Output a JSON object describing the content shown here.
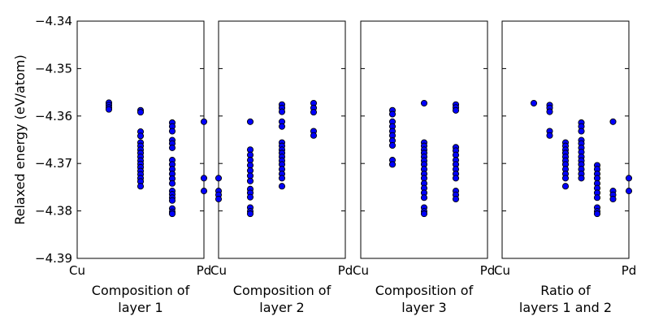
{
  "chart_data": {
    "type": "scatter",
    "ylabel": "Relaxed energy (eV/atom)",
    "ylim": [
      -4.39,
      -4.34
    ],
    "yticks": [
      "−4.34",
      "−4.35",
      "−4.36",
      "−4.37",
      "−4.38",
      "−4.39"
    ],
    "ytick_values": [
      -4.34,
      -4.35,
      -4.36,
      -4.37,
      -4.38,
      -4.39
    ],
    "xlim": [
      0,
      1
    ],
    "marker_color": "#0000ff",
    "edge_color": "#000000",
    "subplots": [
      {
        "xlabel_lines": [
          "Composition of",
          "layer 1"
        ],
        "xtick_left": "Cu",
        "xtick_right": "Pd",
        "points": [
          [
            0.25,
            -4.3572
          ],
          [
            0.25,
            -4.3577
          ],
          [
            0.25,
            -4.3582
          ],
          [
            0.25,
            -4.3586
          ],
          [
            0.5,
            -4.3588
          ],
          [
            0.5,
            -4.3592
          ],
          [
            0.5,
            -4.3633
          ],
          [
            0.5,
            -4.3642
          ],
          [
            0.5,
            -4.3656
          ],
          [
            0.5,
            -4.3663
          ],
          [
            0.5,
            -4.3671
          ],
          [
            0.5,
            -4.3678
          ],
          [
            0.5,
            -4.3686
          ],
          [
            0.5,
            -4.3694
          ],
          [
            0.5,
            -4.3701
          ],
          [
            0.5,
            -4.3708
          ],
          [
            0.5,
            -4.3716
          ],
          [
            0.5,
            -4.3723
          ],
          [
            0.5,
            -4.3731
          ],
          [
            0.5,
            -4.3738
          ],
          [
            0.5,
            -4.3748
          ],
          [
            0.75,
            -4.3614
          ],
          [
            0.75,
            -4.3622
          ],
          [
            0.75,
            -4.3632
          ],
          [
            0.75,
            -4.3651
          ],
          [
            0.75,
            -4.3658
          ],
          [
            0.75,
            -4.3667
          ],
          [
            0.75,
            -4.3693
          ],
          [
            0.75,
            -4.3702
          ],
          [
            0.75,
            -4.3712
          ],
          [
            0.75,
            -4.3722
          ],
          [
            0.75,
            -4.3732
          ],
          [
            0.75,
            -4.3742
          ],
          [
            0.75,
            -4.3758
          ],
          [
            0.75,
            -4.3765
          ],
          [
            0.75,
            -4.3772
          ],
          [
            0.75,
            -4.3778
          ],
          [
            0.75,
            -4.3795
          ],
          [
            0.75,
            -4.3802
          ],
          [
            0.75,
            -4.3806
          ],
          [
            1.0,
            -4.3612
          ],
          [
            1.0,
            -4.3731
          ],
          [
            1.0,
            -4.3758
          ]
        ]
      },
      {
        "xlabel_lines": [
          "Composition of",
          "layer 2"
        ],
        "xtick_left": "Cu",
        "xtick_right": "Pd",
        "points": [
          [
            0.0,
            -4.3731
          ],
          [
            0.0,
            -4.3758
          ],
          [
            0.0,
            -4.3766
          ],
          [
            0.0,
            -4.3775
          ],
          [
            0.25,
            -4.3612
          ],
          [
            0.25,
            -4.3671
          ],
          [
            0.25,
            -4.3682
          ],
          [
            0.25,
            -4.3693
          ],
          [
            0.25,
            -4.3704
          ],
          [
            0.25,
            -4.3715
          ],
          [
            0.25,
            -4.3726
          ],
          [
            0.25,
            -4.3737
          ],
          [
            0.25,
            -4.3754
          ],
          [
            0.25,
            -4.3762
          ],
          [
            0.25,
            -4.3771
          ],
          [
            0.25,
            -4.3793
          ],
          [
            0.25,
            -4.3801
          ],
          [
            0.25,
            -4.3806
          ],
          [
            0.5,
            -4.3576
          ],
          [
            0.5,
            -4.3583
          ],
          [
            0.5,
            -4.3591
          ],
          [
            0.5,
            -4.3612
          ],
          [
            0.5,
            -4.3622
          ],
          [
            0.5,
            -4.3656
          ],
          [
            0.5,
            -4.3663
          ],
          [
            0.5,
            -4.3671
          ],
          [
            0.5,
            -4.3678
          ],
          [
            0.5,
            -4.3686
          ],
          [
            0.5,
            -4.3694
          ],
          [
            0.5,
            -4.3702
          ],
          [
            0.5,
            -4.3712
          ],
          [
            0.5,
            -4.3722
          ],
          [
            0.5,
            -4.3731
          ],
          [
            0.5,
            -4.3748
          ],
          [
            0.75,
            -4.3573
          ],
          [
            0.75,
            -4.3583
          ],
          [
            0.75,
            -4.3592
          ],
          [
            0.75,
            -4.3632
          ],
          [
            0.75,
            -4.3641
          ]
        ]
      },
      {
        "xlabel_lines": [
          "Composition of",
          "layer 3"
        ],
        "xtick_left": "Cu",
        "xtick_right": "Pd",
        "points": [
          [
            0.25,
            -4.3588
          ],
          [
            0.25,
            -4.3596
          ],
          [
            0.25,
            -4.3612
          ],
          [
            0.25,
            -4.3622
          ],
          [
            0.25,
            -4.3632
          ],
          [
            0.25,
            -4.3641
          ],
          [
            0.25,
            -4.3652
          ],
          [
            0.25,
            -4.3662
          ],
          [
            0.25,
            -4.3693
          ],
          [
            0.25,
            -4.3702
          ],
          [
            0.5,
            -4.3573
          ],
          [
            0.5,
            -4.3656
          ],
          [
            0.5,
            -4.3663
          ],
          [
            0.5,
            -4.3671
          ],
          [
            0.5,
            -4.3678
          ],
          [
            0.5,
            -4.3686
          ],
          [
            0.5,
            -4.3694
          ],
          [
            0.5,
            -4.3702
          ],
          [
            0.5,
            -4.3712
          ],
          [
            0.5,
            -4.3722
          ],
          [
            0.5,
            -4.3731
          ],
          [
            0.5,
            -4.3742
          ],
          [
            0.5,
            -4.3752
          ],
          [
            0.5,
            -4.3762
          ],
          [
            0.5,
            -4.3772
          ],
          [
            0.5,
            -4.3793
          ],
          [
            0.5,
            -4.3801
          ],
          [
            0.5,
            -4.3806
          ],
          [
            0.75,
            -4.3576
          ],
          [
            0.75,
            -4.3582
          ],
          [
            0.75,
            -4.3588
          ],
          [
            0.75,
            -4.3666
          ],
          [
            0.75,
            -4.3673
          ],
          [
            0.75,
            -4.3682
          ],
          [
            0.75,
            -4.3693
          ],
          [
            0.75,
            -4.3702
          ],
          [
            0.75,
            -4.3712
          ],
          [
            0.75,
            -4.3722
          ],
          [
            0.75,
            -4.3731
          ],
          [
            0.75,
            -4.3758
          ],
          [
            0.75,
            -4.3766
          ],
          [
            0.75,
            -4.3775
          ]
        ]
      },
      {
        "xlabel_lines": [
          "Ratio of",
          "layers 1 and 2"
        ],
        "xtick_left": "Cu",
        "xtick_right": "Pd",
        "points": [
          [
            0.25,
            -4.3573
          ],
          [
            0.375,
            -4.3577
          ],
          [
            0.375,
            -4.3583
          ],
          [
            0.375,
            -4.3591
          ],
          [
            0.375,
            -4.3632
          ],
          [
            0.375,
            -4.3641
          ],
          [
            0.5,
            -4.3656
          ],
          [
            0.5,
            -4.3663
          ],
          [
            0.5,
            -4.3671
          ],
          [
            0.5,
            -4.3678
          ],
          [
            0.5,
            -4.3686
          ],
          [
            0.5,
            -4.3694
          ],
          [
            0.5,
            -4.3702
          ],
          [
            0.5,
            -4.3712
          ],
          [
            0.5,
            -4.3722
          ],
          [
            0.5,
            -4.3731
          ],
          [
            0.5,
            -4.3748
          ],
          [
            0.625,
            -4.3614
          ],
          [
            0.625,
            -4.3622
          ],
          [
            0.625,
            -4.3632
          ],
          [
            0.625,
            -4.3651
          ],
          [
            0.625,
            -4.3658
          ],
          [
            0.625,
            -4.3667
          ],
          [
            0.625,
            -4.3676
          ],
          [
            0.625,
            -4.3686
          ],
          [
            0.625,
            -4.3694
          ],
          [
            0.625,
            -4.3702
          ],
          [
            0.625,
            -4.3712
          ],
          [
            0.625,
            -4.3722
          ],
          [
            0.625,
            -4.3731
          ],
          [
            0.75,
            -4.3704
          ],
          [
            0.75,
            -4.3712
          ],
          [
            0.75,
            -4.3722
          ],
          [
            0.75,
            -4.3731
          ],
          [
            0.75,
            -4.3742
          ],
          [
            0.75,
            -4.3752
          ],
          [
            0.75,
            -4.3762
          ],
          [
            0.75,
            -4.3772
          ],
          [
            0.75,
            -4.3793
          ],
          [
            0.75,
            -4.3801
          ],
          [
            0.75,
            -4.3806
          ],
          [
            0.875,
            -4.3612
          ],
          [
            0.875,
            -4.3758
          ],
          [
            0.875,
            -4.3766
          ],
          [
            0.875,
            -4.3775
          ],
          [
            1.0,
            -4.3731
          ],
          [
            1.0,
            -4.3758
          ]
        ]
      }
    ]
  }
}
